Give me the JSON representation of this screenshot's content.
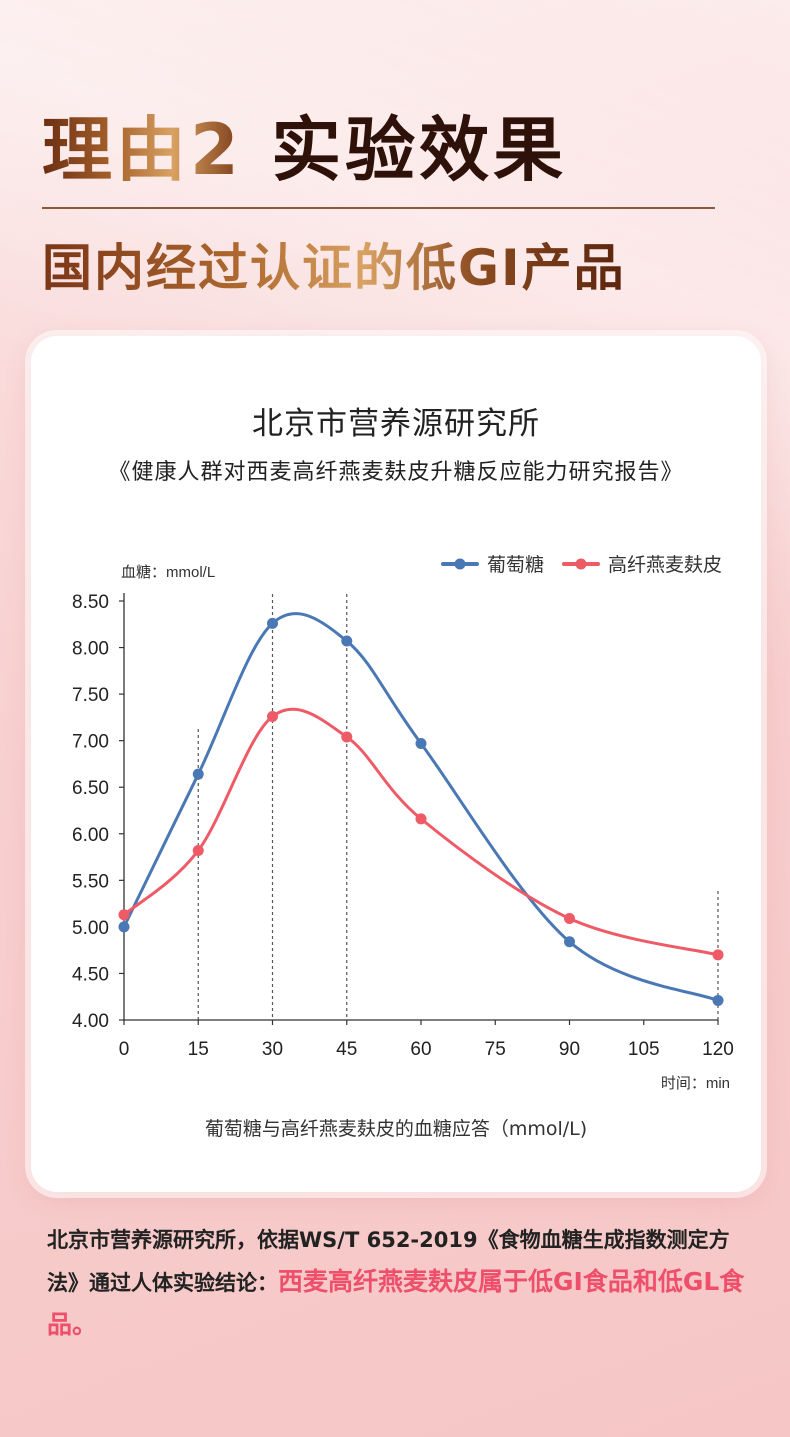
{
  "heading": {
    "part1": "理由2",
    "part2": "实验效果",
    "subheading": "国内经过认证的低GI产品"
  },
  "card": {
    "title": "北京市营养源研究所",
    "subtitle": "《健康人群对西麦高纤燕麦麸皮升糖反应能力研究报告》",
    "caption": "葡萄糖与高纤燕麦麸皮的血糖应答（mmol/L)"
  },
  "chart_data": {
    "type": "line",
    "ylabel": "血糖：mmol/L",
    "xlabel": "时间：min",
    "x": [
      0,
      15,
      30,
      45,
      60,
      90,
      120
    ],
    "xticks": [
      0,
      15,
      30,
      45,
      60,
      75,
      90,
      105,
      120
    ],
    "yticks": [
      "4.00",
      "4.50",
      "5.00",
      "5.50",
      "6.00",
      "6.50",
      "7.00",
      "7.50",
      "8.00",
      "8.50"
    ],
    "xlim": [
      0,
      120
    ],
    "ylim": [
      4.0,
      8.5
    ],
    "grid": false,
    "reference_lines_x": [
      15,
      30,
      45,
      120
    ],
    "legend_position": "top-right",
    "series": [
      {
        "name": "葡萄糖",
        "color": "#4a78b5",
        "values": [
          5.0,
          6.64,
          8.26,
          8.07,
          6.97,
          4.84,
          4.21
        ]
      },
      {
        "name": "高纤燕麦麸皮",
        "color": "#ee5a66",
        "values": [
          5.13,
          5.82,
          7.26,
          7.04,
          6.16,
          5.09,
          4.7
        ]
      }
    ]
  },
  "footnote": {
    "text": "北京市营养源研究所，依据WS/T 652-2019《食物血糖生成指数测定方法》通过人体实验结论：",
    "highlight": "西麦高纤燕麦麸皮属于低GI食品和低GL食品。"
  }
}
